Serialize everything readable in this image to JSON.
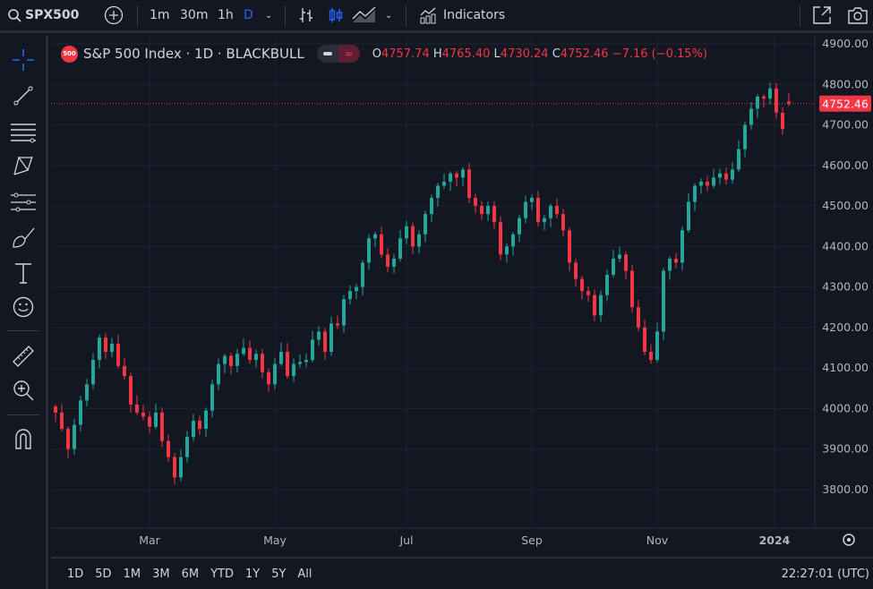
{
  "topbar": {
    "symbol": "SPX500",
    "intervals": [
      "1m",
      "30m",
      "1h",
      "D"
    ],
    "indicators_label": "Indicators"
  },
  "legend": {
    "badge": "500",
    "title": "S&P 500 Index · 1D · BLACKBULL",
    "o_label": "O",
    "o": "4757.74",
    "h_label": "H",
    "h": "4765.40",
    "l_label": "L",
    "l": "4730.24",
    "c_label": "C",
    "c": "4752.46",
    "change": "−7.16 (−0.15%)"
  },
  "colors": {
    "up": "#26a69a",
    "down": "#f23645",
    "bg": "#131722",
    "accent": "#2962ff"
  },
  "bottombar": {
    "ranges": [
      "1D",
      "5D",
      "1M",
      "3M",
      "6M",
      "YTD",
      "1Y",
      "5Y",
      "All"
    ],
    "clock": "22:27:01 (UTC)"
  },
  "chart_data": {
    "type": "candlestick",
    "title": "S&P 500 Index · 1D · BLACKBULL",
    "ylim": [
      3720,
      4940
    ],
    "yticks": [
      "4900.00",
      "4800.00",
      "4700.00",
      "4600.00",
      "4500.00",
      "4400.00",
      "4300.00",
      "4200.00",
      "4100.00",
      "4000.00",
      "3900.00",
      "3800.00"
    ],
    "xticks": [
      {
        "label": "Mar",
        "index": 15
      },
      {
        "label": "May",
        "index": 35
      },
      {
        "label": "Jul",
        "index": 56
      },
      {
        "label": "Sep",
        "index": 76
      },
      {
        "label": "Nov",
        "index": 96
      },
      {
        "label": "2024",
        "index": 115
      }
    ],
    "last_price": "4752.46",
    "last_open": 4757.74,
    "closes": [
      3990,
      3950,
      3900,
      3960,
      4020,
      4060,
      4120,
      4175,
      4140,
      4160,
      4105,
      4080,
      4010,
      3990,
      3980,
      3955,
      3990,
      3920,
      3880,
      3830,
      3880,
      3930,
      3970,
      3950,
      3995,
      4060,
      4110,
      4130,
      4105,
      4135,
      4150,
      4120,
      4135,
      4090,
      4060,
      4110,
      4140,
      4080,
      4110,
      4115,
      4120,
      4170,
      4190,
      4140,
      4210,
      4205,
      4270,
      4290,
      4300,
      4360,
      4420,
      4430,
      4380,
      4350,
      4370,
      4420,
      4450,
      4400,
      4430,
      4480,
      4520,
      4550,
      4560,
      4580,
      4570,
      4590,
      4520,
      4500,
      4480,
      4500,
      4460,
      4380,
      4400,
      4430,
      4470,
      4510,
      4520,
      4460,
      4470,
      4500,
      4480,
      4440,
      4360,
      4320,
      4290,
      4280,
      4230,
      4280,
      4330,
      4370,
      4380,
      4340,
      4250,
      4200,
      4140,
      4120,
      4190,
      4340,
      4370,
      4360,
      4440,
      4510,
      4550,
      4560,
      4550,
      4570,
      4580,
      4565,
      4590,
      4640,
      4700,
      4740,
      4770,
      4765,
      4790,
      4730,
      4690,
      4752.46
    ]
  }
}
